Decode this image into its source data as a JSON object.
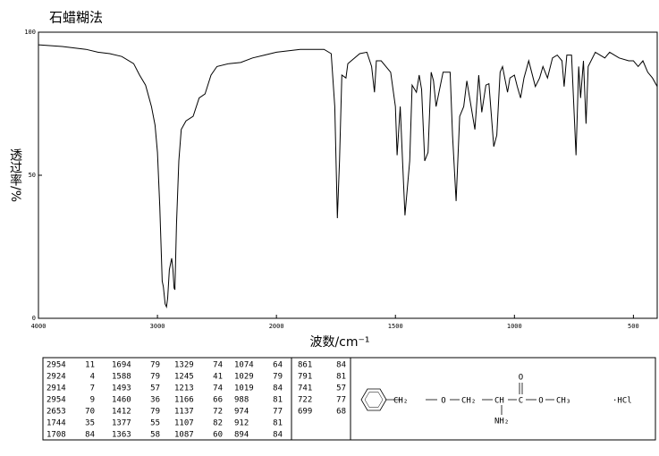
{
  "chart_data": {
    "type": "line",
    "title": "石蜡糊法",
    "y_label": "透过率/%",
    "x_label": "波数/cm⁻¹",
    "color": "#000000",
    "xlim": [
      4000,
      400
    ],
    "xscale": {
      "break": 2000,
      "factor": 2
    },
    "xticks": [
      4000,
      3000,
      2000,
      1500,
      1000,
      500
    ],
    "ylim": [
      0,
      100
    ],
    "yticks": [
      0,
      50,
      100
    ],
    "x": [
      4000,
      3800,
      3600,
      3500,
      3400,
      3300,
      3200,
      3150,
      3100,
      3050,
      3020,
      3000,
      2980,
      2960,
      2950,
      2935,
      2924,
      2914,
      2900,
      2880,
      2870,
      2860,
      2853,
      2840,
      2820,
      2800,
      2760,
      2700,
      2650,
      2600,
      2550,
      2500,
      2400,
      2300,
      2200,
      2100,
      2000,
      1900,
      1850,
      1800,
      1770,
      1755,
      1744,
      1735,
      1725,
      1708,
      1700,
      1650,
      1620,
      1600,
      1588,
      1580,
      1560,
      1520,
      1500,
      1493,
      1480,
      1470,
      1460,
      1440,
      1430,
      1412,
      1400,
      1390,
      1377,
      1363,
      1350,
      1340,
      1329,
      1300,
      1270,
      1260,
      1245,
      1230,
      1213,
      1200,
      1166,
      1150,
      1137,
      1120,
      1107,
      1087,
      1074,
      1060,
      1050,
      1029,
      1019,
      1000,
      988,
      974,
      960,
      940,
      912,
      894,
      880,
      861,
      840,
      820,
      800,
      791,
      780,
      760,
      741,
      730,
      722,
      710,
      699,
      690,
      660,
      620,
      600,
      560,
      520,
      500,
      480,
      460,
      440,
      420,
      400
    ],
    "values": [
      95.6,
      95,
      94,
      93,
      92.5,
      91.5,
      89,
      85,
      81.5,
      74,
      67.5,
      58,
      39,
      13,
      11,
      5,
      4,
      7,
      17,
      21,
      17,
      10.6,
      10,
      33,
      55,
      66,
      69,
      70.6,
      77,
      78.4,
      85,
      88,
      89,
      89.4,
      91,
      92,
      93,
      94,
      94,
      94,
      92.5,
      74,
      35,
      55,
      85,
      84,
      89,
      92.5,
      93,
      88,
      79,
      90,
      90,
      86,
      74,
      57,
      74,
      55,
      36,
      55,
      81.5,
      79,
      85,
      80,
      55,
      58,
      86,
      83,
      74,
      86,
      86,
      64,
      41,
      70.6,
      74,
      83,
      66,
      85,
      72,
      81.5,
      82,
      60,
      64,
      86,
      88,
      79,
      84,
      85,
      81,
      77,
      84,
      90,
      81,
      84,
      88,
      84,
      91,
      92,
      90,
      81,
      92,
      92,
      57,
      88,
      77,
      90,
      68,
      88,
      93,
      91,
      93,
      91,
      90,
      90,
      88,
      90,
      86,
      84,
      81
    ]
  },
  "peak_table": [
    [
      [
        2954,
        11
      ],
      [
        2924,
        4
      ],
      [
        2914,
        7
      ],
      [
        2954,
        9
      ],
      [
        2653,
        70
      ],
      [
        1744,
        35
      ],
      [
        1708,
        84
      ]
    ],
    [
      [
        1694,
        79
      ],
      [
        1588,
        79
      ],
      [
        1493,
        57
      ],
      [
        1460,
        36
      ],
      [
        1412,
        79
      ],
      [
        1377,
        55
      ],
      [
        1363,
        58
      ]
    ],
    [
      [
        1329,
        74
      ],
      [
        1245,
        41
      ],
      [
        1213,
        74
      ],
      [
        1166,
        66
      ],
      [
        1137,
        72
      ],
      [
        1107,
        82
      ],
      [
        1087,
        60
      ]
    ],
    [
      [
        1074,
        64
      ],
      [
        1029,
        79
      ],
      [
        1019,
        84
      ],
      [
        988,
        81
      ],
      [
        974,
        77
      ],
      [
        912,
        81
      ],
      [
        894,
        84
      ]
    ],
    [
      [
        861,
        84
      ],
      [
        791,
        81
      ],
      [
        741,
        57
      ],
      [
        722,
        77
      ],
      [
        699,
        68
      ]
    ]
  ],
  "structure": {
    "chain": [
      "CH₂",
      "O",
      "CH₂",
      "CH",
      "C",
      "O",
      "CH₃"
    ],
    "carbonyl": "O",
    "amine": "NH₂",
    "salt": "·HCl"
  }
}
